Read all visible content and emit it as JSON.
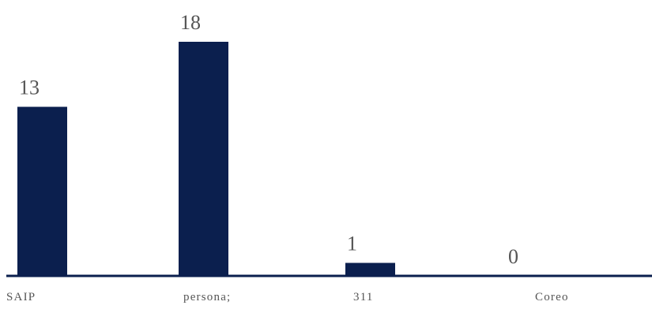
{
  "chart_data": {
    "type": "bar",
    "categories": [
      "SAIP",
      "persona;",
      "311",
      "Coreo"
    ],
    "values": [
      13,
      18,
      1,
      0
    ],
    "title": "",
    "xlabel": "",
    "ylabel": "",
    "ylim": [
      0,
      18
    ],
    "grid": false,
    "legend": "none",
    "data_labels": [
      "13",
      "18",
      "1",
      "0"
    ],
    "bar_color": "#0b1f4e",
    "axis_color": "#0b1f4e"
  }
}
